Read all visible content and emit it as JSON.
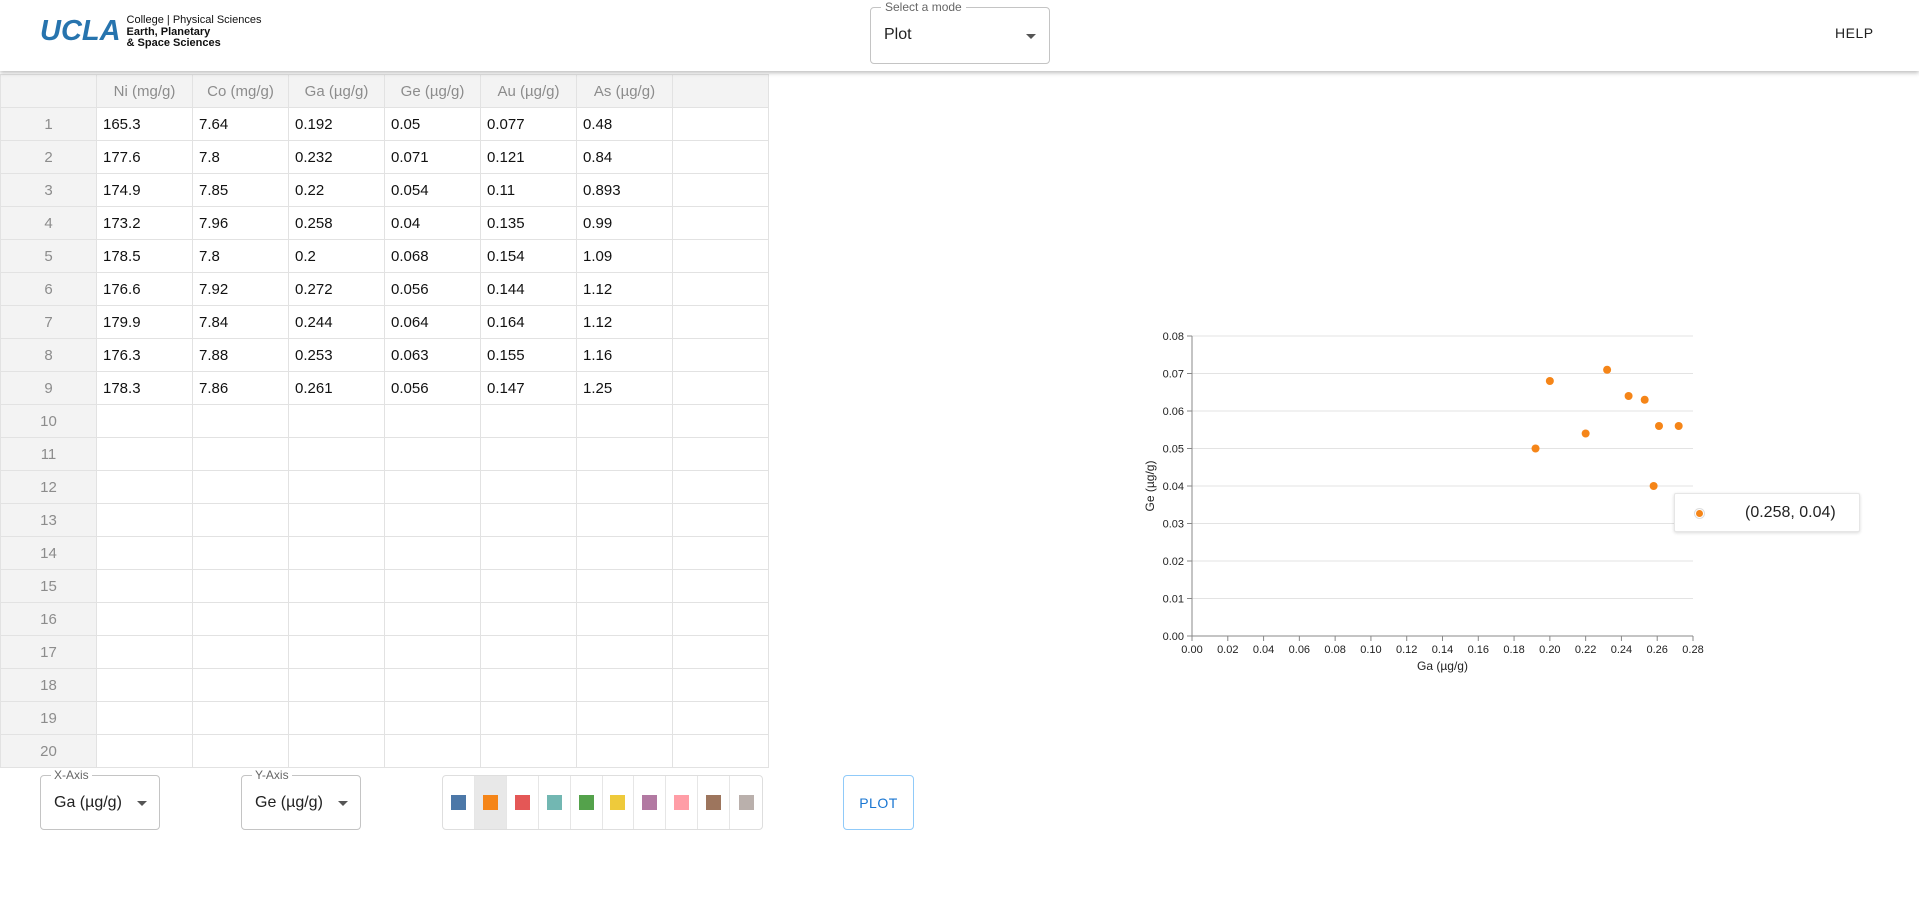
{
  "header": {
    "logo_word": "UCLA",
    "logo_line1": "College | Physical Sciences",
    "logo_line2": "Earth, Planetary",
    "logo_line3": "& Space Sciences",
    "mode_label": "Select a mode",
    "mode_value": "Plot",
    "help_label": "HELP"
  },
  "table": {
    "columns": [
      "Ni (mg/g)",
      "Co (mg/g)",
      "Ga (µg/g)",
      "Ge (µg/g)",
      "Au (µg/g)",
      "As (µg/g)",
      ""
    ],
    "row_numbers": [
      "1",
      "2",
      "3",
      "4",
      "5",
      "6",
      "7",
      "8",
      "9",
      "10",
      "11",
      "12",
      "13",
      "14",
      "15",
      "16",
      "17",
      "18",
      "19",
      "20"
    ],
    "rows": [
      [
        "165.3",
        "7.64",
        "0.192",
        "0.05",
        "0.077",
        "0.48",
        ""
      ],
      [
        "177.6",
        "7.8",
        "0.232",
        "0.071",
        "0.121",
        "0.84",
        ""
      ],
      [
        "174.9",
        "7.85",
        "0.22",
        "0.054",
        "0.11",
        "0.893",
        ""
      ],
      [
        "173.2",
        "7.96",
        "0.258",
        "0.04",
        "0.135",
        "0.99",
        ""
      ],
      [
        "178.5",
        "7.8",
        "0.2",
        "0.068",
        "0.154",
        "1.09",
        ""
      ],
      [
        "176.6",
        "7.92",
        "0.272",
        "0.056",
        "0.144",
        "1.12",
        ""
      ],
      [
        "179.9",
        "7.84",
        "0.244",
        "0.064",
        "0.164",
        "1.12",
        ""
      ],
      [
        "176.3",
        "7.88",
        "0.253",
        "0.063",
        "0.155",
        "1.16",
        ""
      ],
      [
        "178.3",
        "7.86",
        "0.261",
        "0.056",
        "0.147",
        "1.25",
        ""
      ]
    ]
  },
  "controls": {
    "x_axis_label": "X-Axis",
    "x_axis_value": "Ga (µg/g)",
    "y_axis_label": "Y-Axis",
    "y_axis_value": "Ge (µg/g)",
    "palette": [
      "#4c78a8",
      "#f58518",
      "#e45756",
      "#72b7b2",
      "#54a24b",
      "#eeca3b",
      "#b279a2",
      "#ff9da6",
      "#9d755d",
      "#bab0ac"
    ],
    "selected_color_index": 1,
    "plot_label": "PLOT"
  },
  "chart_data": {
    "type": "scatter",
    "xlabel": "Ga (µg/g)",
    "ylabel": "Ge (µg/g)",
    "xlim": [
      0,
      0.28
    ],
    "ylim": [
      0,
      0.08
    ],
    "x_ticks": [
      "0.00",
      "0.02",
      "0.04",
      "0.06",
      "0.08",
      "0.10",
      "0.12",
      "0.14",
      "0.16",
      "0.18",
      "0.20",
      "0.22",
      "0.24",
      "0.26",
      "0.28"
    ],
    "y_ticks": [
      "0.00",
      "0.01",
      "0.02",
      "0.03",
      "0.04",
      "0.05",
      "0.06",
      "0.07",
      "0.08"
    ],
    "grid": "horizontal",
    "color": "#f58518",
    "points": [
      {
        "x": 0.192,
        "y": 0.05
      },
      {
        "x": 0.232,
        "y": 0.071
      },
      {
        "x": 0.22,
        "y": 0.054
      },
      {
        "x": 0.258,
        "y": 0.04
      },
      {
        "x": 0.2,
        "y": 0.068
      },
      {
        "x": 0.272,
        "y": 0.056
      },
      {
        "x": 0.244,
        "y": 0.064
      },
      {
        "x": 0.253,
        "y": 0.063
      },
      {
        "x": 0.261,
        "y": 0.056
      }
    ],
    "tooltip": "(0.258, 0.04)"
  }
}
